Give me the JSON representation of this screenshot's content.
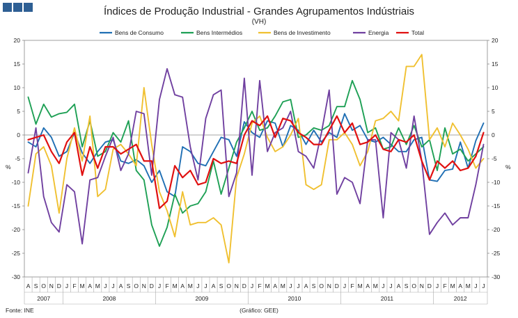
{
  "chart_data": {
    "type": "line",
    "title": "Índices de Produção Industrial - Grandes Agrupamentos Indústriais",
    "subtitle": "(VH)",
    "ylabel_left": "%",
    "ylabel_right": "%",
    "ylim": [
      -30,
      20
    ],
    "yticks": [
      20,
      15,
      10,
      5,
      0,
      -5,
      -10,
      -15,
      -20,
      -25,
      -30
    ],
    "month_labels": [
      "A",
      "S",
      "O",
      "N",
      "D",
      "J",
      "F",
      "M",
      "A",
      "M",
      "J",
      "J",
      "A",
      "S",
      "O",
      "N",
      "D",
      "J",
      "F",
      "M",
      "A",
      "M",
      "J",
      "J",
      "A",
      "S",
      "O",
      "N",
      "D",
      "J",
      "F",
      "M",
      "A",
      "M",
      "J",
      "J",
      "A",
      "S",
      "O",
      "N",
      "D",
      "J",
      "F",
      "M",
      "A",
      "M",
      "J",
      "J",
      "A",
      "S",
      "O",
      "N",
      "D",
      "J",
      "F",
      "M",
      "A",
      "M",
      "J",
      "J"
    ],
    "years": [
      {
        "label": "2007",
        "start": 0,
        "end": 5
      },
      {
        "label": "2008",
        "start": 5,
        "end": 17
      },
      {
        "label": "2009",
        "start": 17,
        "end": 29
      },
      {
        "label": "2010",
        "start": 29,
        "end": 41
      },
      {
        "label": "2011",
        "start": 41,
        "end": 53
      },
      {
        "label": "2012",
        "start": 53,
        "end": 60
      }
    ],
    "series": [
      {
        "name": "Bens de Consumo",
        "color": "#1f6fb4",
        "values": [
          -1.5,
          -2.5,
          1.5,
          -0.5,
          -4.5,
          -3.5,
          0.5,
          -3.8,
          -6,
          -3.5,
          -1.5,
          -1,
          -5.5,
          -6,
          -5.2,
          -6.5,
          -10,
          -7.5,
          -12,
          -13,
          -2.5,
          -3.5,
          -6,
          -6.5,
          -3.5,
          -0.5,
          -1,
          -4.5,
          2.8,
          0.5,
          -0.5,
          3,
          2.5,
          -2.5,
          2,
          1,
          -2,
          1,
          -1.5,
          0.5,
          -0.5,
          4.5,
          1,
          2,
          -1,
          -1.5,
          -0.5,
          -2,
          -3.5,
          -3.5,
          -1,
          -0.5,
          -9.5,
          -9.8,
          -7.5,
          -7.2,
          -1.5,
          -7,
          -1.2,
          2.5
        ]
      },
      {
        "name": "Bens Intermédios",
        "color": "#1ea055",
        "values": [
          8,
          2.3,
          6.5,
          3.8,
          4.5,
          4.8,
          6.5,
          -2.5,
          3,
          -4.5,
          -3.5,
          0.5,
          -1.5,
          3,
          -7.5,
          -9.5,
          -19,
          -23.5,
          -19.5,
          -12.5,
          -16.5,
          -15,
          -14.5,
          -12,
          -5.5,
          -12.5,
          -7,
          -1.5,
          1.5,
          5,
          1,
          1.5,
          4,
          7,
          7.5,
          -0.5,
          0,
          1.5,
          1,
          2,
          6,
          6,
          11.5,
          7.5,
          0.5,
          1.5,
          -3,
          -2.5,
          1.5,
          -2,
          2,
          -2.5,
          -1,
          -7.5,
          1.5,
          -4,
          -3,
          -5.5,
          -4,
          -2.5
        ]
      },
      {
        "name": "Bens de Investimento",
        "color": "#f0c030",
        "values": [
          -15,
          -4,
          -2.5,
          -6.5,
          -16.5,
          -5,
          1.5,
          -5.5,
          4,
          -13,
          -11.5,
          -3,
          -2,
          -4,
          -6.5,
          10,
          -2,
          -12,
          -16,
          -21.5,
          -12,
          -19,
          -18.5,
          -18.5,
          -17.5,
          -19,
          -27,
          -9,
          -4,
          2.5,
          4,
          -0.5,
          -3.5,
          -2.5,
          0,
          3.5,
          -10.5,
          -11.5,
          -10.5,
          -1,
          -1,
          0.5,
          -2,
          -6.5,
          -3.5,
          3,
          3.5,
          5,
          3,
          14.5,
          14.5,
          17,
          -1,
          1.5,
          -2.5,
          2.5,
          0,
          -3,
          -7,
          -5
        ]
      },
      {
        "name": "Energia",
        "color": "#7040a0",
        "values": [
          -8,
          1.5,
          -13,
          -18.5,
          -20.5,
          -10.5,
          -12,
          -23,
          -9.5,
          -9,
          -4.5,
          -0.5,
          -7.5,
          -4,
          5,
          4.5,
          -8.5,
          7.5,
          14,
          8.5,
          8,
          -2.5,
          -9.5,
          3.5,
          8.5,
          9.5,
          -13,
          -8,
          12,
          -8.5,
          11.5,
          -3.5,
          0.5,
          1.5,
          5,
          -3.5,
          -4.5,
          -7,
          0.5,
          9.5,
          -12.5,
          -9,
          -10,
          -14.5,
          -1,
          -1,
          -17.5,
          0.5,
          -1,
          -7,
          4,
          -5.5,
          -21,
          -18.5,
          -16.5,
          -19,
          -17.5,
          -17.5,
          -10.5,
          -2
        ]
      },
      {
        "name": "Total",
        "color": "#e01010",
        "values": [
          -1,
          -0.5,
          0,
          -3.5,
          -6,
          -1.5,
          0.5,
          -8.5,
          -2.5,
          -7,
          -2.5,
          -2.5,
          -4,
          -3,
          -2,
          -5.5,
          -5.5,
          -15.5,
          -14,
          -6.5,
          -9,
          -7.5,
          -10.5,
          -10,
          -5,
          -6,
          -5.5,
          -6,
          0,
          3,
          2,
          4,
          -0.5,
          3.5,
          3,
          0.5,
          -0.5,
          -2,
          -2,
          1,
          4,
          0.5,
          2.5,
          -2,
          -1.5,
          0,
          -3,
          -3.5,
          -1,
          -1.5,
          0,
          -5.5,
          -9.5,
          -5.5,
          -7,
          -5.5,
          -7.5,
          -7,
          -4.5,
          0.5
        ]
      }
    ],
    "source_left": "Fonte: INE",
    "source_center": "(Gráfico: GEE)"
  }
}
